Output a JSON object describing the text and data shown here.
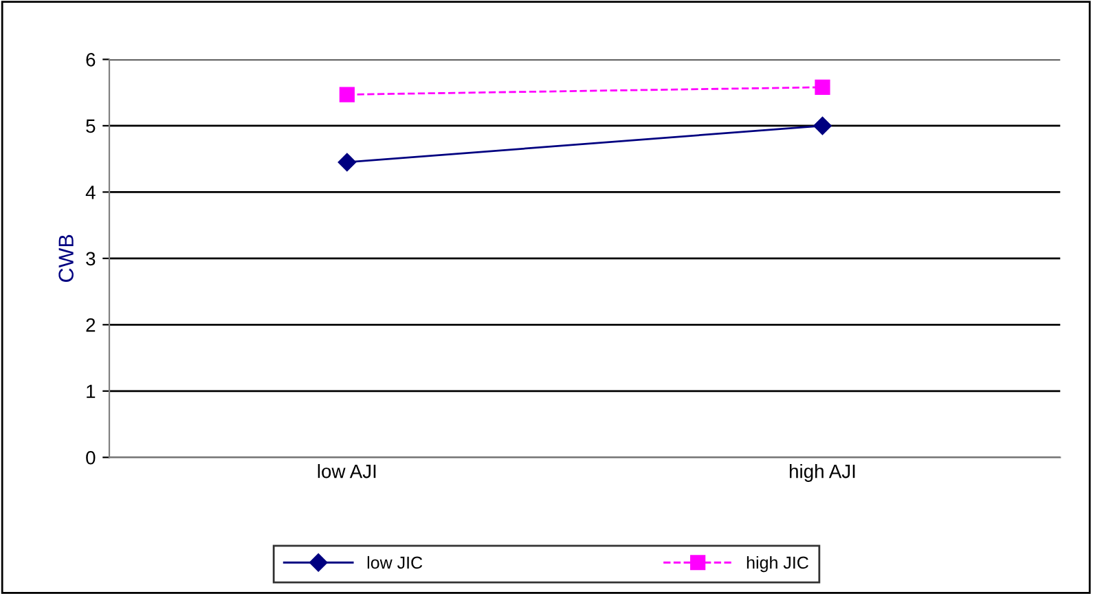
{
  "chart_data": {
    "type": "line",
    "ylabel": "CWB",
    "categories": [
      "low AJI",
      "high AJI"
    ],
    "series": [
      {
        "name": "low JIC",
        "color": "#000080",
        "values": [
          4.45,
          5.0
        ],
        "marker": "diamond",
        "line_style": "solid"
      },
      {
        "name": "high JIC",
        "color": "#ff00ff",
        "values": [
          5.47,
          5.58
        ],
        "marker": "square",
        "line_style": "dashed"
      }
    ],
    "ylim": [
      0,
      6
    ],
    "yticks": [
      0,
      1,
      2,
      3,
      4,
      5,
      6
    ],
    "grid": "y",
    "legend": "bottom"
  }
}
